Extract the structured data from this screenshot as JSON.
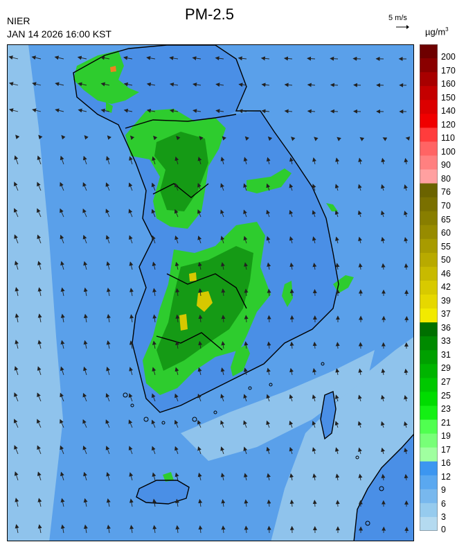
{
  "header": {
    "agency": "NIER",
    "datetime": "JAN 14 2026 16:00 KST",
    "title": "PM-2.5",
    "wind_scale_label": "5 m/s",
    "unit_base": "µg/m",
    "unit_exp": "3"
  },
  "legend": {
    "labels": [
      "200",
      "170",
      "160",
      "150",
      "140",
      "120",
      "110",
      "100",
      "90",
      "80",
      "76",
      "70",
      "65",
      "60",
      "55",
      "50",
      "46",
      "42",
      "39",
      "37",
      "36",
      "33",
      "31",
      "29",
      "27",
      "25",
      "23",
      "21",
      "19",
      "17",
      "16",
      "12",
      "9",
      "6",
      "3",
      "0"
    ],
    "colors": [
      "#6e0000",
      "#8a0000",
      "#a80000",
      "#c40000",
      "#dc0000",
      "#f00000",
      "#ff3c3c",
      "#ff6464",
      "#ff8080",
      "#ffa0a0",
      "#6b6300",
      "#7a7000",
      "#887e00",
      "#978b00",
      "#a89b00",
      "#b8aa00",
      "#c8ba00",
      "#d8ca00",
      "#e6d800",
      "#f2ea00",
      "#007000",
      "#008a00",
      "#00a000",
      "#00b400",
      "#00c800",
      "#00dc00",
      "#14f014",
      "#50ff50",
      "#78ff78",
      "#a0ffa0",
      "#3c96f0",
      "#5aa8f0",
      "#78b8ee",
      "#96cbee",
      "#b4daf0"
    ],
    "group_colors": {
      "very_bad": "#d00000",
      "bad": "#a89b00",
      "normal": "#00c800",
      "good": "#5aa8f0"
    }
  },
  "map": {
    "background_color": "#5aa0ea",
    "sea_light_color": "#8fc3ec",
    "land_color": "#4a8fe6",
    "pm_green": "#2ecc2e",
    "pm_dark_green": "#159a15",
    "pm_light_green": "#6ee86e",
    "pm_yellow": "#d6c800",
    "pm_orange": "#f08020",
    "border_color": "#000000"
  }
}
